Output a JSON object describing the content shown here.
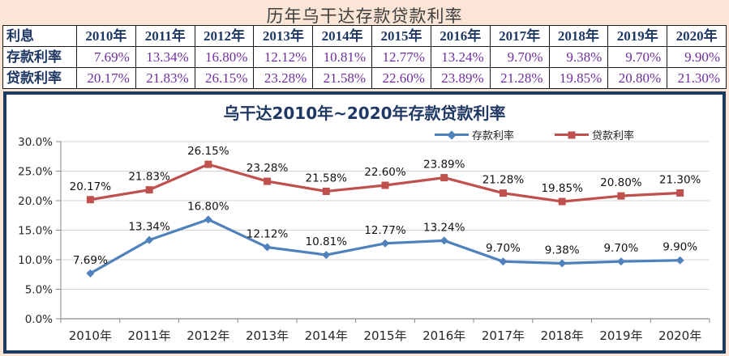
{
  "table": {
    "title": "历年乌干达存款贷款利率",
    "header_col": "利息",
    "years": [
      "2010年",
      "2011年",
      "2012年",
      "2013年",
      "2014年",
      "2015年",
      "2016年",
      "2017年",
      "2018年",
      "2019年",
      "2020年"
    ],
    "rows": [
      {
        "label": "存款利率",
        "values": [
          "7.69%",
          "13.34%",
          "16.80%",
          "12.12%",
          "10.81%",
          "12.77%",
          "13.24%",
          "9.70%",
          "9.38%",
          "9.70%",
          "9.90%"
        ]
      },
      {
        "label": "贷款利率",
        "values": [
          "20.17%",
          "21.83%",
          "26.15%",
          "23.28%",
          "21.58%",
          "22.60%",
          "23.89%",
          "21.28%",
          "19.85%",
          "20.80%",
          "21.30%"
        ]
      }
    ]
  },
  "chart": {
    "title": "乌干达2010年~2020年存款贷款利率"
  },
  "chart_data": {
    "type": "line",
    "title": "乌干达2010年~2020年存款贷款利率",
    "categories": [
      "2010年",
      "2011年",
      "2012年",
      "2013年",
      "2014年",
      "2015年",
      "2016年",
      "2017年",
      "2018年",
      "2019年",
      "2020年"
    ],
    "series": [
      {
        "name": "存款利率",
        "color": "#4f81bd",
        "marker": "diamond",
        "values": [
          7.69,
          13.34,
          16.8,
          12.12,
          10.81,
          12.77,
          13.24,
          9.7,
          9.38,
          9.7,
          9.9
        ]
      },
      {
        "name": "贷款利率",
        "color": "#c0504d",
        "marker": "square",
        "values": [
          20.17,
          21.83,
          26.15,
          23.28,
          21.58,
          22.6,
          23.89,
          21.28,
          19.85,
          20.8,
          21.3
        ]
      }
    ],
    "xlabel": "",
    "ylabel": "",
    "ylim": [
      0,
      30
    ],
    "ytick_step": 5,
    "ytick_labels": [
      "0.0%",
      "5.0%",
      "10.0%",
      "15.0%",
      "20.0%",
      "25.0%",
      "30.0%"
    ],
    "grid": true,
    "data_labels": true,
    "legend_position": "top"
  },
  "colors": {
    "page_bg": "#fbe5d6",
    "table_bg": "#ffffff",
    "header_text": "#1f3864",
    "value_text": "#7030a0",
    "chart_border": "#1b3a5f",
    "deposit_series": "#4f81bd",
    "loan_series": "#c0504d",
    "gridline": "#d6d6d6",
    "axis": "#898989"
  }
}
